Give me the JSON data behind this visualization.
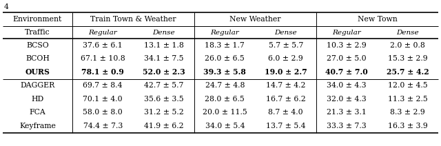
{
  "col_group_labels": [
    "Train Town & Weather",
    "New Weather",
    "New Town"
  ],
  "col_group_spans": [
    2,
    2,
    2
  ],
  "row_header1": "Environment",
  "row_header2": "Traffic",
  "sub_col_labels": [
    "Regular",
    "Dense",
    "Regular",
    "Dense",
    "Regular",
    "Dense"
  ],
  "rows": [
    {
      "name": "BCSO",
      "values": [
        "37.6 ± 6.1",
        "13.1 ± 1.8",
        "18.3 ± 1.7",
        "5.7 ± 5.7",
        "10.3 ± 2.9",
        "2.0 ± 0.8"
      ],
      "bold": false,
      "sep": true
    },
    {
      "name": "BCOH",
      "values": [
        "67.1 ± 10.8",
        "34.1 ± 7.5",
        "26.0 ± 6.5",
        "6.0 ± 2.9",
        "27.0 ± 5.0",
        "15.3 ± 2.9"
      ],
      "bold": false,
      "sep": false
    },
    {
      "name": "OURS",
      "values": [
        "78.1 ± 0.9",
        "52.0 ± 2.3",
        "39.3 ± 5.8",
        "19.0 ± 2.7",
        "40.7 ± 7.0",
        "25.7 ± 4.2"
      ],
      "bold": true,
      "sep": false
    },
    {
      "name": "DAGGER",
      "values": [
        "69.7 ± 8.4",
        "42.7 ± 5.7",
        "24.7 ± 4.8",
        "14.7 ± 4.2",
        "34.0 ± 4.3",
        "12.0 ± 4.5"
      ],
      "bold": false,
      "sep": true
    },
    {
      "name": "HD",
      "values": [
        "70.1 ± 4.0",
        "35.6 ± 3.5",
        "28.0 ± 6.5",
        "16.7 ± 6.2",
        "32.0 ± 4.3",
        "11.3 ± 2.5"
      ],
      "bold": false,
      "sep": false
    },
    {
      "name": "FCA",
      "values": [
        "58.0 ± 8.0",
        "31.2 ± 5.2",
        "20.0 ± 11.5",
        "8.7 ± 4.0",
        "21.3 ± 3.1",
        "8.3 ± 2.9"
      ],
      "bold": false,
      "sep": false
    },
    {
      "name": "Keyframe",
      "values": [
        "74.4 ± 7.3",
        "41.9 ± 6.2",
        "34.0 ± 5.4",
        "13.7 ± 5.4",
        "33.3 ± 7.3",
        "16.3 ± 3.9"
      ],
      "bold": false,
      "sep": false
    }
  ],
  "bg_color": "#ffffff",
  "text_color": "#000000",
  "fs": 7.8,
  "fs_italic": 7.5
}
